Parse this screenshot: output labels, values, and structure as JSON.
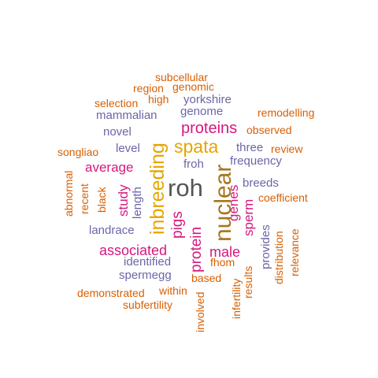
{
  "palette": {
    "orange": "#d95f02",
    "purple": "#6a66a9",
    "magenta": "#d6187f",
    "gold": "#e6a500",
    "olive": "#a6761d",
    "gray": "#555555"
  },
  "words": [
    {
      "text": "roh",
      "color": "gray"
    },
    {
      "text": "nuclear",
      "color": "olive"
    },
    {
      "text": "inbreeding",
      "color": "gold"
    },
    {
      "text": "spata",
      "color": "gold"
    },
    {
      "text": "proteins",
      "color": "magenta"
    },
    {
      "text": "pigs",
      "color": "magenta"
    },
    {
      "text": "protein",
      "color": "magenta"
    },
    {
      "text": "associated",
      "color": "magenta"
    },
    {
      "text": "average",
      "color": "magenta"
    },
    {
      "text": "male",
      "color": "magenta"
    },
    {
      "text": "sperm",
      "color": "magenta"
    },
    {
      "text": "genes",
      "color": "magenta"
    },
    {
      "text": "study",
      "color": "magenta"
    },
    {
      "text": "yorkshire",
      "color": "purple"
    },
    {
      "text": "genome",
      "color": "purple"
    },
    {
      "text": "mammalian",
      "color": "purple"
    },
    {
      "text": "novel",
      "color": "purple"
    },
    {
      "text": "level",
      "color": "purple"
    },
    {
      "text": "froh",
      "color": "purple"
    },
    {
      "text": "three",
      "color": "purple"
    },
    {
      "text": "frequency",
      "color": "purple"
    },
    {
      "text": "breeds",
      "color": "purple"
    },
    {
      "text": "landrace",
      "color": "purple"
    },
    {
      "text": "identified",
      "color": "purple"
    },
    {
      "text": "spermegg",
      "color": "purple"
    },
    {
      "text": "length",
      "color": "purple"
    },
    {
      "text": "provides",
      "color": "purple"
    },
    {
      "text": "subcellular",
      "color": "orange"
    },
    {
      "text": "region",
      "color": "orange"
    },
    {
      "text": "genomic",
      "color": "orange"
    },
    {
      "text": "selection",
      "color": "orange"
    },
    {
      "text": "high",
      "color": "orange"
    },
    {
      "text": "remodelling",
      "color": "orange"
    },
    {
      "text": "observed",
      "color": "orange"
    },
    {
      "text": "songliao",
      "color": "orange"
    },
    {
      "text": "review",
      "color": "orange"
    },
    {
      "text": "abnormal",
      "color": "orange"
    },
    {
      "text": "recent",
      "color": "orange"
    },
    {
      "text": "black",
      "color": "orange"
    },
    {
      "text": "coefficient",
      "color": "orange"
    },
    {
      "text": "relevance",
      "color": "orange"
    },
    {
      "text": "distribution",
      "color": "orange"
    },
    {
      "text": "fhom",
      "color": "orange"
    },
    {
      "text": "based",
      "color": "orange"
    },
    {
      "text": "results",
      "color": "orange"
    },
    {
      "text": "infertility",
      "color": "orange"
    },
    {
      "text": "demonstrated",
      "color": "orange"
    },
    {
      "text": "within",
      "color": "orange"
    },
    {
      "text": "involved",
      "color": "orange"
    },
    {
      "text": "subfertility",
      "color": "orange"
    }
  ]
}
